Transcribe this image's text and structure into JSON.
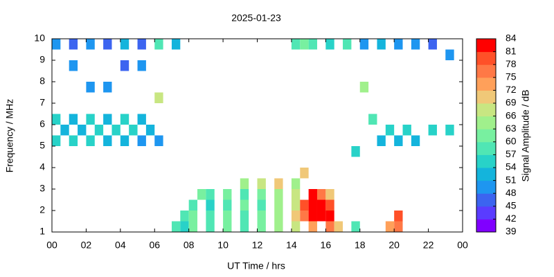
{
  "chart_data": {
    "type": "heatmap",
    "title": "2025-01-23",
    "x_label": "UT Time / hrs",
    "y_label": "Frequency / MHz",
    "colorbar_label": "Signal Amplitude / dB",
    "xlim": [
      0,
      24
    ],
    "ylim": [
      1,
      10
    ],
    "xticks": [
      {
        "value": 0,
        "label": "00"
      },
      {
        "value": 2,
        "label": "02"
      },
      {
        "value": 4,
        "label": "04"
      },
      {
        "value": 6,
        "label": "06"
      },
      {
        "value": 8,
        "label": "08"
      },
      10,
      12,
      14,
      16,
      18,
      20,
      22,
      {
        "value": 24,
        "label": "00"
      }
    ],
    "yticks": [
      1,
      2,
      3,
      4,
      5,
      6,
      7,
      8,
      9,
      10
    ],
    "clim": [
      39,
      84
    ],
    "cticks": [
      39,
      42,
      45,
      48,
      51,
      54,
      57,
      60,
      63,
      66,
      69,
      72,
      75,
      78,
      81,
      84
    ],
    "colors": [
      "#8000ff",
      "#5a3cff",
      "#3c64f0",
      "#1e96f0",
      "#14b4dc",
      "#28d2c8",
      "#50e6b4",
      "#78f0a0",
      "#a0f08c",
      "#c8e682",
      "#f0c878",
      "#ffa05a",
      "#ff7846",
      "#ff5028",
      "#ff0000"
    ],
    "cells": [
      [
        0,
        5,
        54
      ],
      [
        0.5,
        5.5,
        51
      ],
      [
        1,
        5,
        54
      ],
      [
        1.5,
        5.5,
        51
      ],
      [
        2,
        5,
        54
      ],
      [
        2.5,
        5.5,
        54
      ],
      [
        3,
        5,
        51
      ],
      [
        3.5,
        5.5,
        54
      ],
      [
        4,
        5,
        51
      ],
      [
        4.5,
        5.5,
        54
      ],
      [
        5,
        5,
        48
      ],
      [
        5.5,
        5.5,
        51
      ],
      [
        6,
        5,
        48
      ],
      [
        0,
        6,
        54
      ],
      [
        1,
        6,
        51
      ],
      [
        2,
        6,
        54
      ],
      [
        3,
        6,
        51
      ],
      [
        4,
        6,
        54
      ],
      [
        5,
        6,
        51
      ],
      [
        0,
        9.5,
        48
      ],
      [
        1,
        9.5,
        45
      ],
      [
        2,
        9.5,
        48
      ],
      [
        3,
        9.5,
        45
      ],
      [
        4,
        9.5,
        51
      ],
      [
        5,
        9.5,
        45
      ],
      [
        6,
        9.5,
        57
      ],
      [
        7,
        9.5,
        51
      ],
      [
        1,
        8.5,
        48
      ],
      [
        2,
        7.5,
        48
      ],
      [
        3,
        7.5,
        48
      ],
      [
        4,
        8.5,
        45
      ],
      [
        5,
        8.5,
        48
      ],
      [
        6,
        7,
        66
      ],
      [
        14,
        9.5,
        57
      ],
      [
        14.5,
        9.5,
        60
      ],
      [
        15,
        9.5,
        57
      ],
      [
        16,
        9.5,
        54
      ],
      [
        17,
        9.5,
        57
      ],
      [
        18,
        9.5,
        48
      ],
      [
        19,
        9.5,
        51
      ],
      [
        20,
        9.5,
        48
      ],
      [
        21,
        9.5,
        48
      ],
      [
        22,
        9.5,
        45
      ],
      [
        23,
        9,
        48
      ],
      [
        19,
        5,
        51
      ],
      [
        19.5,
        5.5,
        54
      ],
      [
        20,
        5,
        51
      ],
      [
        20.5,
        5.5,
        54
      ],
      [
        21,
        5,
        51
      ],
      [
        22,
        5.5,
        54
      ],
      [
        23,
        5.5,
        54
      ],
      [
        18.5,
        6,
        57
      ],
      [
        18,
        7.5,
        63
      ],
      [
        17.5,
        4.5,
        54
      ],
      [
        7,
        1,
        57
      ],
      [
        7.5,
        1,
        54
      ],
      [
        8,
        1,
        60
      ],
      [
        9,
        1,
        57
      ],
      [
        10,
        1,
        60
      ],
      [
        11,
        1,
        57
      ],
      [
        12,
        1,
        60
      ],
      [
        13,
        1,
        63
      ],
      [
        14,
        1,
        66
      ],
      [
        15,
        1,
        72
      ],
      [
        16,
        1,
        75
      ],
      [
        16.5,
        1,
        69
      ],
      [
        17.5,
        1,
        57
      ],
      [
        19.5,
        1,
        72
      ],
      [
        20,
        1,
        75
      ],
      [
        7.5,
        1.5,
        57
      ],
      [
        8,
        1.5,
        60
      ],
      [
        9,
        1.5,
        57
      ],
      [
        10,
        1.5,
        60
      ],
      [
        11,
        1.5,
        57
      ],
      [
        12,
        1.5,
        60
      ],
      [
        13,
        1.5,
        63
      ],
      [
        14,
        1.5,
        69
      ],
      [
        14.5,
        1.5,
        75
      ],
      [
        15,
        1.5,
        81
      ],
      [
        15.5,
        1.5,
        84
      ],
      [
        16,
        1.5,
        81
      ],
      [
        20,
        1.5,
        78
      ],
      [
        8,
        2,
        57
      ],
      [
        9,
        2,
        54
      ],
      [
        10,
        2,
        57
      ],
      [
        11,
        2,
        60
      ],
      [
        12,
        2,
        57
      ],
      [
        13,
        2,
        63
      ],
      [
        14,
        2,
        66
      ],
      [
        14.5,
        2,
        78
      ],
      [
        15,
        2,
        84
      ],
      [
        15.5,
        2,
        81
      ],
      [
        16,
        2,
        78
      ],
      [
        8.5,
        2.5,
        60
      ],
      [
        9,
        2.5,
        57
      ],
      [
        10,
        2.5,
        60
      ],
      [
        11,
        2.5,
        57
      ],
      [
        12,
        2.5,
        60
      ],
      [
        13,
        2.5,
        63
      ],
      [
        14,
        2.5,
        66
      ],
      [
        15,
        2.5,
        81
      ],
      [
        15.5,
        2.5,
        75
      ],
      [
        16,
        2.5,
        69
      ],
      [
        11,
        3,
        63
      ],
      [
        12,
        3,
        66
      ],
      [
        13,
        3,
        69
      ],
      [
        14,
        3,
        63
      ],
      [
        14.5,
        3.5,
        69
      ]
    ]
  }
}
